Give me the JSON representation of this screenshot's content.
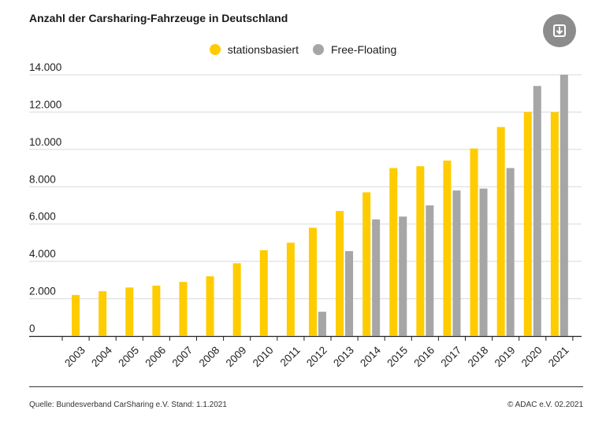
{
  "chart_data": {
    "type": "bar",
    "title": "Anzahl der Carsharing-Fahrzeuge in Deutschland",
    "categories": [
      "2003",
      "2004",
      "2005",
      "2006",
      "2007",
      "2008",
      "2009",
      "2010",
      "2011",
      "2012",
      "2013",
      "2014",
      "2015",
      "2016",
      "2017",
      "2018",
      "2019",
      "2020",
      "2021"
    ],
    "series": [
      {
        "name": "stationsbasiert",
        "color": "#ffcc00",
        "values": [
          2200,
          2400,
          2600,
          2700,
          2900,
          3200,
          3900,
          4600,
          5000,
          5800,
          6700,
          7700,
          9000,
          9100,
          9400,
          10050,
          11200,
          12000,
          12000
        ]
      },
      {
        "name": "Free-Floating",
        "color": "#a6a6a6",
        "values": [
          null,
          null,
          null,
          null,
          null,
          null,
          null,
          null,
          null,
          1300,
          4550,
          6250,
          6400,
          7000,
          7800,
          7900,
          9000,
          13400,
          14000
        ]
      }
    ],
    "y_ticks": [
      {
        "value": 0,
        "label": "0"
      },
      {
        "value": 2000,
        "label": "2.000"
      },
      {
        "value": 4000,
        "label": "4.000"
      },
      {
        "value": 6000,
        "label": "6.000"
      },
      {
        "value": 8000,
        "label": "8.000"
      },
      {
        "value": 10000,
        "label": "10.000"
      },
      {
        "value": 12000,
        "label": "12.000"
      },
      {
        "value": 14000,
        "label": "14.000"
      }
    ],
    "ylim": [
      0,
      14000
    ],
    "xlabel": "",
    "ylabel": "",
    "legend_position": "top-center"
  },
  "legend": [
    {
      "label": "stationsbasiert",
      "color": "#ffcc00"
    },
    {
      "label": "Free-Floating",
      "color": "#a6a6a6"
    }
  ],
  "download_icon": "download-icon",
  "footer": {
    "source": "Quelle: Bundesverband CarSharing e.V. Stand: 1.1.2021",
    "copyright": "© ADAC e.V. 02.2021"
  }
}
